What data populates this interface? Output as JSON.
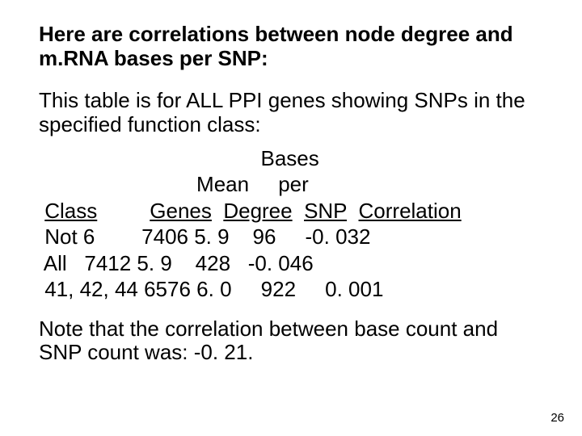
{
  "title": "Here are correlations between node degree and m.RNA bases per SNP:",
  "intro": "This table is for ALL PPI genes showing SNPs in the specified function class:",
  "table": {
    "type": "table",
    "text_color": "#000000",
    "background_color": "#ffffff",
    "fontsize": 26,
    "columns": [
      "Class",
      "Genes",
      "Mean Degree",
      "Bases per SNP",
      "Correlation"
    ],
    "header_line0": "                                      Bases",
    "header_line1": "                           Mean     per",
    "header_line2_parts": {
      "class": "Class",
      "genes": "Genes",
      "degree": "Degree",
      "snp": "SNP",
      "corr": "Correlation"
    },
    "rows": [
      {
        "class": "Not 6",
        "genes": "7406",
        "degree": "5. 9",
        "bps": "96",
        "corr": "-0. 032"
      },
      {
        "class": "All",
        "genes": "7412",
        "degree": "5. 9",
        "bps": "428",
        "corr": "-0. 046"
      },
      {
        "class": "41, 42, 44",
        "genes": "6576",
        "degree": "6. 0",
        "bps": "922",
        "corr": "0. 001"
      }
    ],
    "row_lines": [
      " Not 6        7406 5. 9    96     -0. 032",
      " All   7412 5. 9    428   -0. 046",
      " 41, 42, 44 6576 6. 0     922     0. 001"
    ]
  },
  "note": "Note that the correlation between base count and SNP count was: -0. 21.",
  "page_number": "26"
}
